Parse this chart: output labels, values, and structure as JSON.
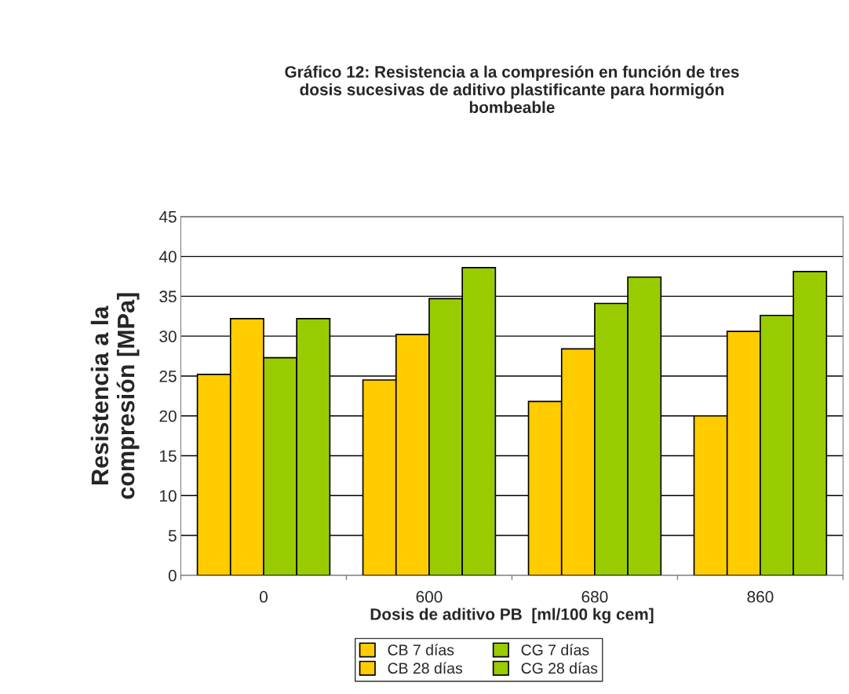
{
  "chart_data": {
    "type": "bar",
    "title": "Gráfico 12: Resistencia a la compresión en función de tres\ndosis sucesivas de aditivo plastificante para hormigón\nbombeable",
    "xlabel": "Dosis de aditivo PB  [ml/100 kg cem]",
    "ylabel": "Resistencia a la\ncompresión [MPa]",
    "categories": [
      "0",
      "600",
      "680",
      "860"
    ],
    "series": [
      {
        "name": "CB 7 días",
        "color": "#ffcc00",
        "values": [
          25.2,
          24.5,
          21.8,
          20.0
        ]
      },
      {
        "name": "CB 28 días",
        "color": "#ffcc00",
        "values": [
          32.2,
          30.2,
          28.4,
          30.6
        ]
      },
      {
        "name": "CG 7 días",
        "color": "#99cc00",
        "values": [
          27.3,
          34.7,
          34.1,
          32.6
        ]
      },
      {
        "name": "CG 28 días",
        "color": "#99cc00",
        "values": [
          32.2,
          38.6,
          37.4,
          38.1
        ]
      }
    ],
    "ylim": [
      0,
      45
    ],
    "yticks": [
      0,
      5,
      10,
      15,
      20,
      25,
      30,
      35,
      40,
      45
    ],
    "grid": "y",
    "legend": "bottom"
  }
}
